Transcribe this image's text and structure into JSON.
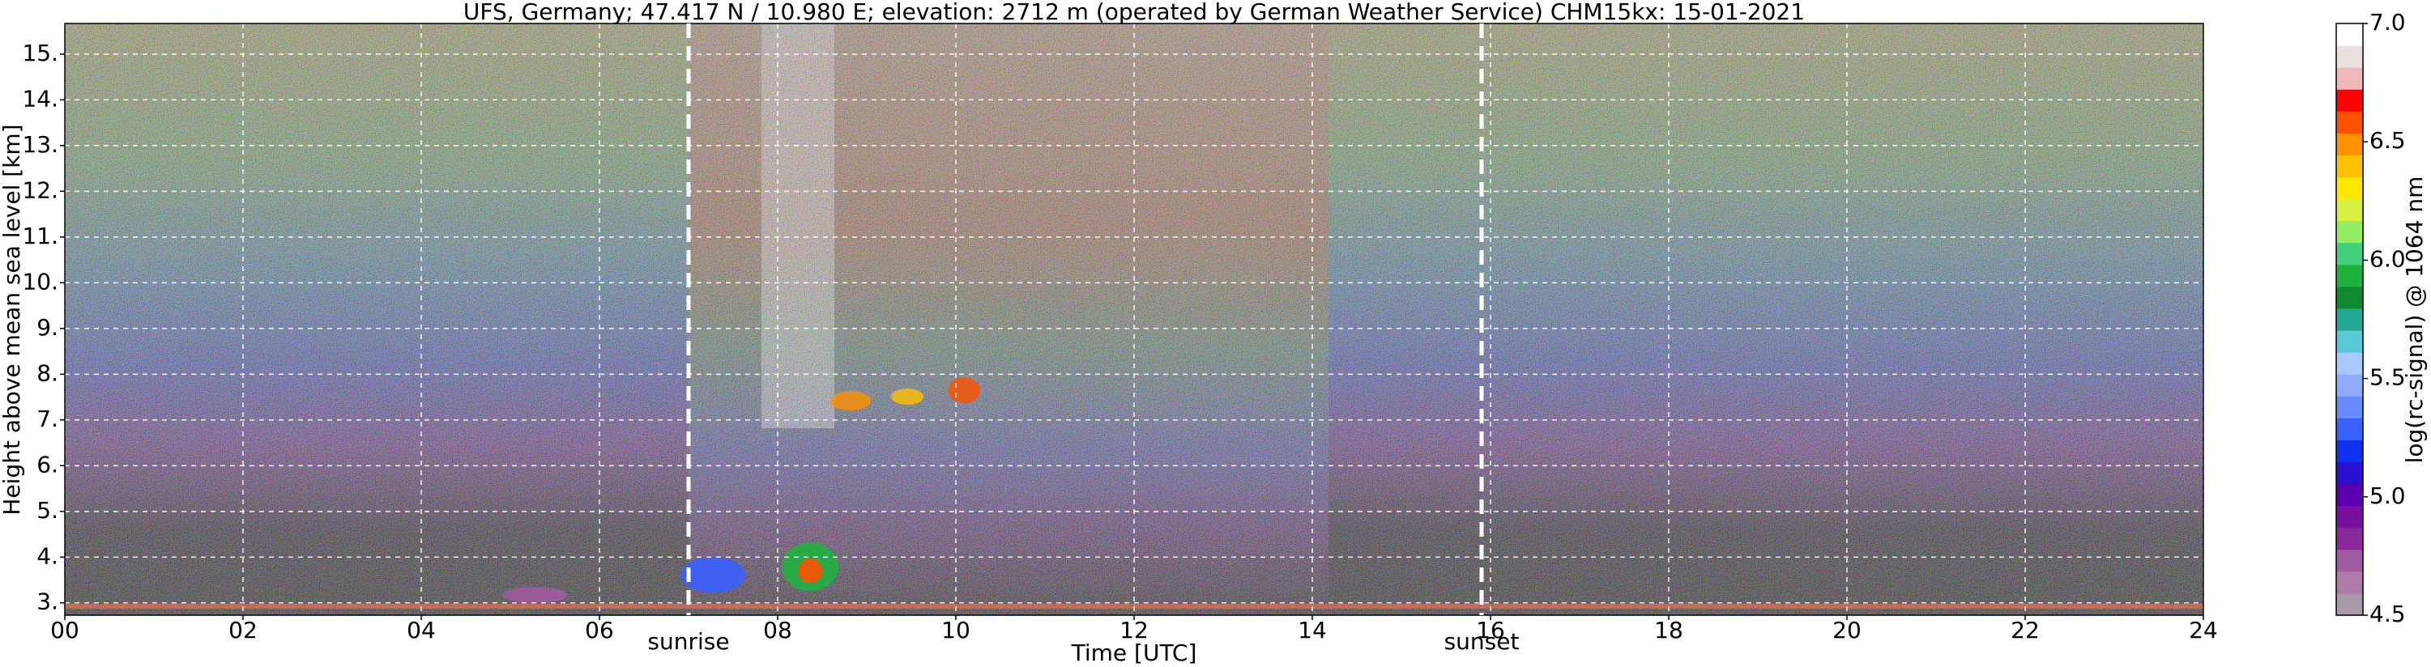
{
  "chart_data": {
    "type": "heatmap",
    "title": "UFS, Germany; 47.417 N / 10.980 E; elevation: 2712 m  (operated by German Weather Service)    CHM15kx: 15-01-2021",
    "xlabel": "Time [UTC]",
    "ylabel": "Height above mean sea level [km]",
    "xlim": [
      0,
      24
    ],
    "xticks": [
      {
        "value": 0,
        "label": "00"
      },
      {
        "value": 2,
        "label": "02"
      },
      {
        "value": 4,
        "label": "04"
      },
      {
        "value": 6,
        "label": "06"
      },
      {
        "value": 8,
        "label": "08"
      },
      10,
      12,
      14,
      16,
      18,
      20,
      22,
      24
    ],
    "ylim": [
      2.73,
      15.67
    ],
    "yticks": [
      {
        "value": 3,
        "label": "3."
      },
      {
        "value": 4,
        "label": "4."
      },
      {
        "value": 5,
        "label": "5."
      },
      {
        "value": 6,
        "label": "6."
      },
      {
        "value": 7,
        "label": "7."
      },
      {
        "value": 8,
        "label": "8."
      },
      {
        "value": 9,
        "label": "9."
      },
      {
        "value": 10,
        "label": "10."
      },
      {
        "value": 11,
        "label": "11."
      },
      {
        "value": 12,
        "label": "12."
      },
      {
        "value": 13,
        "label": "13."
      },
      {
        "value": 14,
        "label": "14."
      },
      {
        "value": 15,
        "label": "15."
      }
    ],
    "grid": true,
    "annotations": [
      {
        "x": 7.0,
        "label": "sunrise"
      },
      {
        "x": 15.9,
        "label": "sunset"
      }
    ],
    "colorbar_label": "log(rc-signal) @ 1064 nm",
    "clim": [
      4.5,
      7.0
    ],
    "cticks": [
      4.5,
      {
        "value": 5,
        "label": "5.0"
      },
      5.5,
      {
        "value": 6,
        "label": "6.0"
      },
      6.5,
      {
        "value": 7,
        "label": "7.0"
      }
    ],
    "colormap": [
      "#a89aa8",
      "#b07aa8",
      "#a05aa0",
      "#8a2a9a",
      "#7a10a0",
      "#5a00b0",
      "#2a10d0",
      "#1030f0",
      "#3a60ff",
      "#6a8aff",
      "#90aaff",
      "#a8c8ff",
      "#5ac8d8",
      "#20a890",
      "#108a30",
      "#20b040",
      "#40d080",
      "#90ee60",
      "#d8f040",
      "#ffe800",
      "#ffc000",
      "#ff9000",
      "#ff5000",
      "#ff0000",
      "#f0b8b8",
      "#ebe0e0",
      "#ffffff"
    ]
  }
}
